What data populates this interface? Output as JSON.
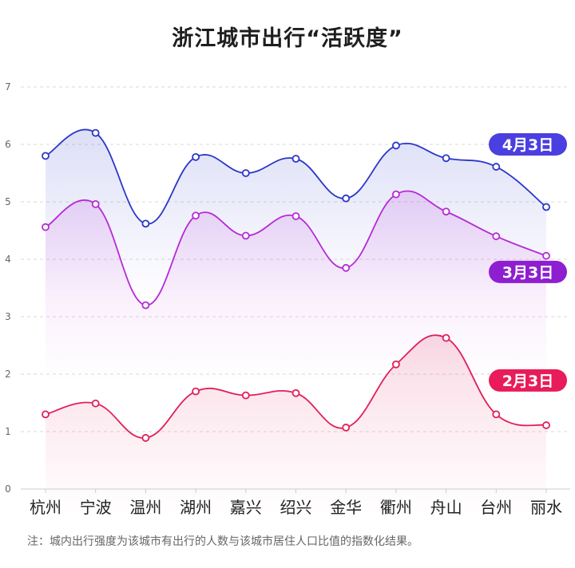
{
  "chart_data": {
    "type": "line",
    "title": "浙江城市出行“活跃度”",
    "categories": [
      "杭州",
      "宁波",
      "温州",
      "湖州",
      "嘉兴",
      "绍兴",
      "金华",
      "衢州",
      "舟山",
      "台州",
      "丽水"
    ],
    "ylim": [
      0,
      7
    ],
    "yticks": [
      "0",
      "1",
      "2",
      "3",
      "4",
      "5",
      "6",
      "7"
    ],
    "grid": true,
    "series": [
      {
        "name": "4月3日",
        "color": "#2a36c8",
        "badge_color": "#4a3fe0",
        "values": [
          5.8,
          6.2,
          4.62,
          5.78,
          5.5,
          5.75,
          5.06,
          5.98,
          5.76,
          5.61,
          4.91
        ]
      },
      {
        "name": "3月3日",
        "color": "#b52ad6",
        "badge_color": "#8e1fd0",
        "values": [
          4.56,
          4.96,
          3.2,
          4.76,
          4.41,
          4.75,
          3.85,
          5.13,
          4.83,
          4.4,
          4.06
        ]
      },
      {
        "name": "2月3日",
        "color": "#e0205a",
        "badge_color": "#e81c5a",
        "values": [
          1.3,
          1.49,
          0.89,
          1.7,
          1.63,
          1.67,
          1.07,
          2.17,
          2.63,
          1.3,
          1.11
        ]
      }
    ]
  },
  "footnote": "注：城内出行强度为该城市有出行的人数与该城市居住人口比值的指数化结果。"
}
